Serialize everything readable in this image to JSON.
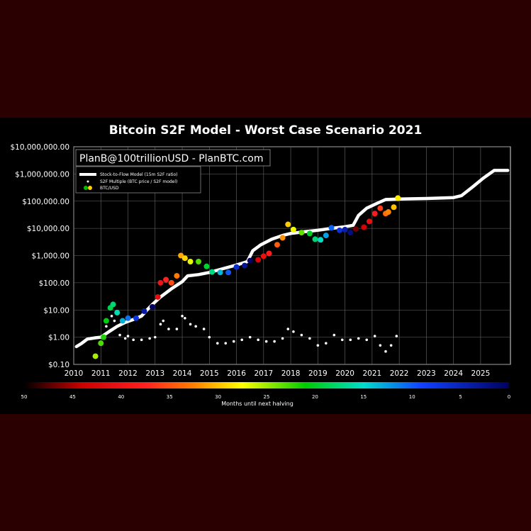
{
  "chart_data": {
    "type": "scatter",
    "title": "Bitcoin S2F Model - Worst Case Scenario 2021",
    "watermark": "PlanB@100trillionUSD - PlanBTC.com",
    "yscale": "log",
    "ylim": [
      0.1,
      10000000
    ],
    "xlim": [
      2010,
      2026.1
    ],
    "y_tick_labels": [
      "$10,000,000.00",
      "$1,000,000.00",
      "$100,000.00",
      "$10,000.00",
      "$1,000.00",
      "$100.00",
      "$10.00",
      "$1.00",
      "$0.10"
    ],
    "y_tick_values": [
      10000000,
      1000000,
      100000,
      10000,
      1000,
      100,
      10,
      1,
      0.1
    ],
    "x_tick_labels": [
      "2010",
      "2011",
      "2012",
      "2013",
      "2014",
      "2015",
      "2016",
      "2017",
      "2018",
      "2019",
      "2020",
      "2021",
      "2022",
      "2023",
      "2024",
      "2025"
    ],
    "legend": {
      "position": "top-left",
      "entries": [
        "Stock-to-Flow Model (15m S2F ratio)",
        "S2F Multiple (BTC price / S2F model)",
        "BTC/USD"
      ]
    },
    "colorbar": {
      "label": "Months until next halving",
      "tick_labels": [
        "50",
        "45",
        "40",
        "35",
        "30",
        "25",
        "20",
        "15",
        "10",
        "5",
        "0"
      ],
      "range": [
        50,
        0
      ]
    },
    "series": [
      {
        "name": "Stock-to-Flow Model (15m S2F ratio)",
        "points": [
          [
            2010.1,
            0.45
          ],
          [
            2010.3,
            0.6
          ],
          [
            2010.5,
            0.85
          ],
          [
            2010.8,
            0.95
          ],
          [
            2011.0,
            1.0
          ],
          [
            2011.3,
            1.6
          ],
          [
            2011.6,
            2.5
          ],
          [
            2011.9,
            3.5
          ],
          [
            2012.2,
            4.5
          ],
          [
            2012.5,
            6
          ],
          [
            2012.7,
            10
          ],
          [
            2012.9,
            16
          ],
          [
            2013.2,
            30
          ],
          [
            2013.6,
            60
          ],
          [
            2014.0,
            110
          ],
          [
            2014.2,
            180
          ],
          [
            2014.6,
            200
          ],
          [
            2015.0,
            240
          ],
          [
            2015.5,
            330
          ],
          [
            2016.0,
            450
          ],
          [
            2016.4,
            600
          ],
          [
            2016.6,
            1500
          ],
          [
            2016.9,
            2500
          ],
          [
            2017.3,
            4000
          ],
          [
            2017.7,
            5500
          ],
          [
            2018.0,
            6500
          ],
          [
            2018.5,
            7500
          ],
          [
            2019.0,
            8500
          ],
          [
            2019.5,
            10000
          ],
          [
            2020.0,
            11500
          ],
          [
            2020.3,
            13000
          ],
          [
            2020.5,
            30000
          ],
          [
            2020.8,
            55000
          ],
          [
            2021.2,
            85000
          ],
          [
            2021.5,
            115000
          ],
          [
            2022.0,
            120000
          ],
          [
            2023.0,
            125000
          ],
          [
            2024.0,
            135000
          ],
          [
            2024.3,
            160000
          ],
          [
            2024.7,
            330000
          ],
          [
            2025.1,
            700000
          ],
          [
            2025.5,
            1350000
          ],
          [
            2026.0,
            1350000
          ]
        ]
      },
      {
        "name": "S2F Multiple (BTC price / S2F model)",
        "points": [
          [
            2011.0,
            0.6
          ],
          [
            2011.2,
            2.5
          ],
          [
            2011.4,
            6
          ],
          [
            2011.5,
            4
          ],
          [
            2011.7,
            1.2
          ],
          [
            2011.9,
            0.9
          ],
          [
            2012.0,
            1.1
          ],
          [
            2012.2,
            0.8
          ],
          [
            2012.5,
            0.8
          ],
          [
            2012.8,
            0.9
          ],
          [
            2013.0,
            1.0
          ],
          [
            2013.2,
            3
          ],
          [
            2013.3,
            4
          ],
          [
            2013.5,
            2
          ],
          [
            2013.8,
            2
          ],
          [
            2014.0,
            6
          ],
          [
            2014.1,
            5
          ],
          [
            2014.3,
            3
          ],
          [
            2014.5,
            2.5
          ],
          [
            2014.8,
            2
          ],
          [
            2015.0,
            1.0
          ],
          [
            2015.3,
            0.6
          ],
          [
            2015.6,
            0.6
          ],
          [
            2015.9,
            0.7
          ],
          [
            2016.2,
            0.8
          ],
          [
            2016.5,
            1.0
          ],
          [
            2016.8,
            0.8
          ],
          [
            2017.1,
            0.7
          ],
          [
            2017.4,
            0.7
          ],
          [
            2017.7,
            0.9
          ],
          [
            2017.9,
            2.0
          ],
          [
            2018.1,
            1.6
          ],
          [
            2018.4,
            1.2
          ],
          [
            2018.7,
            0.9
          ],
          [
            2019.0,
            0.5
          ],
          [
            2019.3,
            0.6
          ],
          [
            2019.6,
            1.2
          ],
          [
            2019.9,
            0.8
          ],
          [
            2020.2,
            0.8
          ],
          [
            2020.5,
            0.9
          ],
          [
            2020.8,
            0.8
          ],
          [
            2021.1,
            1.1
          ],
          [
            2021.3,
            0.5
          ],
          [
            2021.5,
            0.3
          ],
          [
            2021.7,
            0.5
          ],
          [
            2021.9,
            1.1
          ]
        ]
      },
      {
        "name": "BTC/USD",
        "points": [
          [
            2010.8,
            0.2
          ],
          [
            2011.0,
            0.6
          ],
          [
            2011.1,
            1.0
          ],
          [
            2011.2,
            4
          ],
          [
            2011.35,
            12
          ],
          [
            2011.45,
            16
          ],
          [
            2011.6,
            8
          ],
          [
            2011.8,
            4
          ],
          [
            2012.0,
            5
          ],
          [
            2012.3,
            5
          ],
          [
            2012.6,
            9
          ],
          [
            2012.9,
            13
          ],
          [
            2013.1,
            30
          ],
          [
            2013.2,
            100
          ],
          [
            2013.4,
            130
          ],
          [
            2013.6,
            100
          ],
          [
            2013.8,
            180
          ],
          [
            2013.95,
            1000
          ],
          [
            2014.1,
            800
          ],
          [
            2014.3,
            600
          ],
          [
            2014.6,
            600
          ],
          [
            2014.9,
            400
          ],
          [
            2015.1,
            250
          ],
          [
            2015.4,
            240
          ],
          [
            2015.7,
            240
          ],
          [
            2016.0,
            380
          ],
          [
            2016.3,
            430
          ],
          [
            2016.5,
            650
          ],
          [
            2016.8,
            700
          ],
          [
            2017.0,
            950
          ],
          [
            2017.2,
            1200
          ],
          [
            2017.5,
            2500
          ],
          [
            2017.7,
            4500
          ],
          [
            2017.9,
            14000
          ],
          [
            2018.1,
            9000
          ],
          [
            2018.4,
            7000
          ],
          [
            2018.7,
            6500
          ],
          [
            2018.9,
            4000
          ],
          [
            2019.1,
            3800
          ],
          [
            2019.3,
            5500
          ],
          [
            2019.5,
            10500
          ],
          [
            2019.8,
            8500
          ],
          [
            2020.0,
            9000
          ],
          [
            2020.2,
            7000
          ],
          [
            2020.4,
            9500
          ],
          [
            2020.7,
            11000
          ],
          [
            2020.9,
            18000
          ],
          [
            2021.1,
            35000
          ],
          [
            2021.3,
            55000
          ],
          [
            2021.5,
            35000
          ],
          [
            2021.6,
            40000
          ],
          [
            2021.8,
            60000
          ],
          [
            2021.95,
            130000
          ]
        ]
      }
    ]
  }
}
